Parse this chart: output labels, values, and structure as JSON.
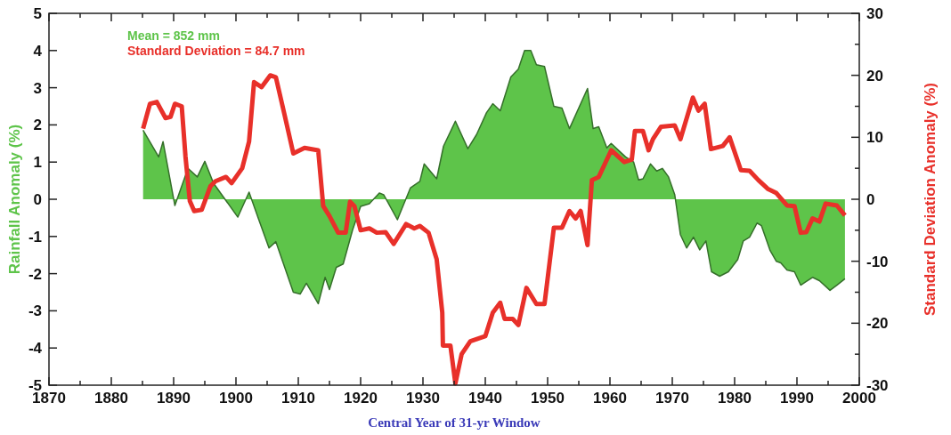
{
  "chart_data": {
    "type": "area",
    "xlabel": "Central Year of 31-yr Window",
    "ylabel": "Rainfall Anomaly (%)",
    "y2label": "Standard Deviation Anomaly (%)",
    "annotations": [
      "Mean = 852 mm",
      "Standard Deviation = 84.7 mm"
    ],
    "xlim": [
      1870,
      2000
    ],
    "xticks": [
      1870,
      {
        "value": 1875,
        "label": null
      },
      1880,
      {
        "value": 1885,
        "label": null
      },
      1890,
      {
        "value": 1895,
        "label": null
      },
      1900,
      {
        "value": 1905,
        "label": null
      },
      1910,
      {
        "value": 1915,
        "label": null
      },
      1920,
      {
        "value": 1925,
        "label": null
      },
      1930,
      {
        "value": 1935,
        "label": null
      },
      1940,
      {
        "value": 1945,
        "label": null
      },
      1950,
      {
        "value": 1955,
        "label": null
      },
      1960,
      {
        "value": 1965,
        "label": null
      },
      1970,
      {
        "value": 1975,
        "label": null
      },
      1980,
      {
        "value": 1985,
        "label": null
      },
      1990,
      {
        "value": 1995,
        "label": null
      },
      2000
    ],
    "ylim": [
      -5,
      5
    ],
    "yticks": [
      -5,
      -4,
      -3,
      -2,
      -1,
      0,
      1,
      2,
      3,
      4,
      5
    ],
    "y2lim": [
      -30,
      30
    ],
    "y2ticks": [
      -30,
      {
        "value": -25,
        "label": null
      },
      -20,
      {
        "value": -15,
        "label": null
      },
      -10,
      {
        "value": -5,
        "label": null
      },
      0,
      {
        "value": 5,
        "label": null
      },
      10,
      {
        "value": 15,
        "label": null
      },
      20,
      {
        "value": 25,
        "label": null
      },
      30
    ],
    "grid": false,
    "series": [
      {
        "color": "#5ec44a",
        "x": [
          1885.1,
          1887.6,
          1888.3,
          1890.2,
          1892.3,
          1893.8,
          1895,
          1896.4,
          1900.3,
          1902.1,
          1903.6,
          1905.3,
          1906.4,
          1909.2,
          1910.3,
          1911.3,
          1913.2,
          1914.3,
          1915,
          1916.1,
          1917.2,
          1918.7,
          1920,
          1921.4,
          1923,
          1923.7,
          1925.9,
          1928,
          1929.5,
          1930.2,
          1932.2,
          1933.3,
          1935.2,
          1937.2,
          1938.6,
          1940.2,
          1941.2,
          1942.4,
          1944.1,
          1945.3,
          1946.3,
          1947.3,
          1948.2,
          1949.5,
          1951,
          1952.3,
          1953.5,
          1956.4,
          1957.3,
          1958.2,
          1959.5,
          1960.2,
          1962.5,
          1963.8,
          1964.6,
          1965.3,
          1966.5,
          1967.5,
          1968.4,
          1969.4,
          1970.4,
          1971.3,
          1972.3,
          1973.4,
          1974.4,
          1975.4,
          1976.3,
          1977.6,
          1979,
          1980.5,
          1981.4,
          1982.4,
          1983.6,
          1984.3,
          1985.7,
          1986.7,
          1987.4,
          1988.4,
          1989.6,
          1990.6,
          1991.5,
          1992.5,
          1993.6,
          1995.3,
          1996.4,
          1997.7
        ],
        "values": [
          1.86,
          1.14,
          1.55,
          -0.17,
          0.83,
          0.6,
          1.02,
          0.43,
          -0.48,
          0.19,
          -0.52,
          -1.31,
          -1.14,
          -2.5,
          -2.55,
          -2.26,
          -2.81,
          -2.1,
          -2.43,
          -1.83,
          -1.74,
          -0.83,
          -0.19,
          -0.12,
          0.17,
          0.12,
          -0.55,
          0.31,
          0.48,
          0.95,
          0.55,
          1.43,
          2.1,
          1.36,
          1.74,
          2.33,
          2.57,
          2.38,
          3.29,
          3.5,
          4.0,
          4.0,
          3.62,
          3.57,
          2.5,
          2.45,
          1.9,
          2.98,
          1.9,
          1.95,
          1.38,
          1.5,
          1.14,
          1.0,
          0.52,
          0.55,
          0.95,
          0.76,
          0.83,
          0.6,
          0.12,
          -0.95,
          -1.31,
          -1.02,
          -1.36,
          -1.12,
          -1.95,
          -2.07,
          -1.95,
          -1.62,
          -1.12,
          -1.02,
          -0.64,
          -0.71,
          -1.38,
          -1.67,
          -1.71,
          -1.9,
          -1.95,
          -2.31,
          -2.21,
          -2.1,
          -2.19,
          -2.45,
          -2.31,
          -2.14
        ]
      },
      {
        "type": "line",
        "axis": "y2",
        "color": "#e8302a",
        "x": [
          1885.1,
          1886.2,
          1887.3,
          1888.7,
          1889.5,
          1890.2,
          1891.3,
          1891.9,
          1892.6,
          1893.3,
          1894.5,
          1895.9,
          1896.7,
          1898.4,
          1899.3,
          1901,
          1902.1,
          1902.9,
          1904.1,
          1905.5,
          1906.4,
          1907.8,
          1909.2,
          1911,
          1913.2,
          1914,
          1915,
          1916.4,
          1917.6,
          1918.3,
          1919,
          1920,
          1921.4,
          1922.6,
          1924,
          1925.3,
          1927.3,
          1928.6,
          1929.5,
          1930.9,
          1932.2,
          1933.1,
          1933.2,
          1934.4,
          1935.2,
          1936.2,
          1937.6,
          1940,
          1941.2,
          1942.4,
          1943.1,
          1944.4,
          1945.3,
          1946.6,
          1948.2,
          1949.5,
          1951,
          1952.3,
          1953.5,
          1954.5,
          1955.3,
          1956.4,
          1957.1,
          1958.2,
          1960.2,
          1962.3,
          1963.5,
          1964,
          1965.3,
          1966.2,
          1966.9,
          1968.2,
          1970.4,
          1971.3,
          1973.3,
          1974.2,
          1975.2,
          1976.2,
          1978.1,
          1979.2,
          1981,
          1982.4,
          1983.8,
          1985.3,
          1986.7,
          1988.4,
          1989.6,
          1990.6,
          1991.5,
          1992.5,
          1993.6,
          1994.6,
          1996.4,
          1997.7
        ],
        "values": [
          11.4,
          15.4,
          15.7,
          13.1,
          13.3,
          15.4,
          15.0,
          6.9,
          -0.3,
          -1.9,
          -1.7,
          2.1,
          2.9,
          3.6,
          2.6,
          5.0,
          9.3,
          18.9,
          18.1,
          20,
          19.7,
          13.6,
          7.4,
          8.3,
          7.9,
          -1.1,
          -2.7,
          -5.4,
          -5.4,
          -0.4,
          -1.1,
          -5,
          -4.7,
          -5.4,
          -5.3,
          -7.2,
          -4,
          -4.7,
          -4.3,
          -5.4,
          -9.7,
          -18.3,
          -23.6,
          -23.6,
          -29.7,
          -25,
          -22.9,
          -22.1,
          -18.3,
          -16.7,
          -19.3,
          -19.3,
          -20.3,
          -14.3,
          -16.9,
          -16.9,
          -4.6,
          -4.6,
          -1.9,
          -3.1,
          -1.9,
          -7.4,
          3.1,
          3.6,
          7.9,
          6,
          6.4,
          11,
          11,
          7.9,
          9.7,
          11.7,
          11.9,
          9.7,
          16.4,
          14.3,
          15.4,
          8.1,
          8.6,
          10,
          4.7,
          4.6,
          3.1,
          1.7,
          1.0,
          -1.0,
          -1.1,
          -5.4,
          -5.3,
          -3.1,
          -3.6,
          -0.7,
          -1.0,
          -2.6
        ]
      }
    ]
  }
}
